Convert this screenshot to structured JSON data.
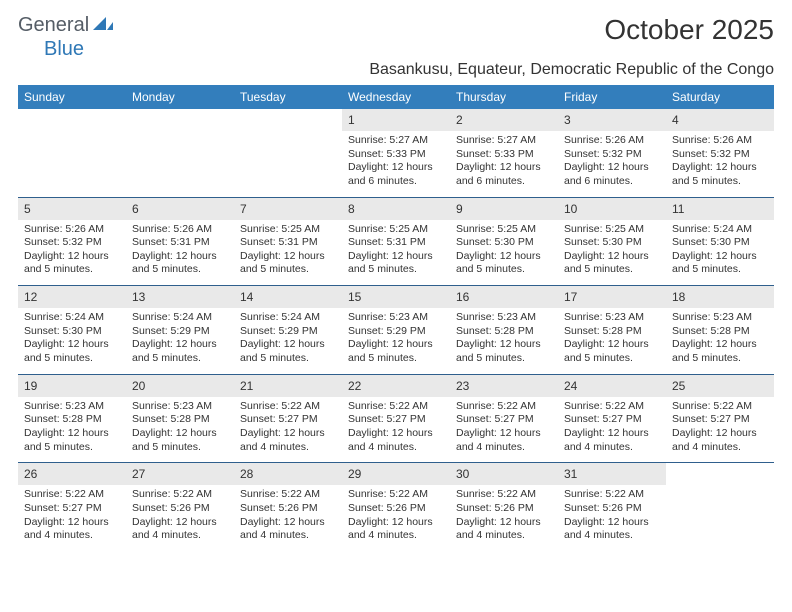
{
  "logo": {
    "text1": "General",
    "text2": "Blue"
  },
  "title": "October 2025",
  "location": "Basankusu, Equateur, Democratic Republic of the Congo",
  "colors": {
    "header_bg": "#337ebc",
    "header_text": "#ffffff",
    "daynum_bg": "#e9e9e9",
    "text": "#333333",
    "rule": "#2f5f8d",
    "logo_gray": "#555d66",
    "logo_blue": "#2f78b6"
  },
  "weekdays": [
    "Sunday",
    "Monday",
    "Tuesday",
    "Wednesday",
    "Thursday",
    "Friday",
    "Saturday"
  ],
  "weeks": [
    {
      "nums": [
        "",
        "",
        "",
        "1",
        "2",
        "3",
        "4"
      ],
      "cells": [
        null,
        null,
        null,
        {
          "sunrise": "Sunrise: 5:27 AM",
          "sunset": "Sunset: 5:33 PM",
          "day1": "Daylight: 12 hours",
          "day2": "and 6 minutes."
        },
        {
          "sunrise": "Sunrise: 5:27 AM",
          "sunset": "Sunset: 5:33 PM",
          "day1": "Daylight: 12 hours",
          "day2": "and 6 minutes."
        },
        {
          "sunrise": "Sunrise: 5:26 AM",
          "sunset": "Sunset: 5:32 PM",
          "day1": "Daylight: 12 hours",
          "day2": "and 6 minutes."
        },
        {
          "sunrise": "Sunrise: 5:26 AM",
          "sunset": "Sunset: 5:32 PM",
          "day1": "Daylight: 12 hours",
          "day2": "and 5 minutes."
        }
      ]
    },
    {
      "nums": [
        "5",
        "6",
        "7",
        "8",
        "9",
        "10",
        "11"
      ],
      "cells": [
        {
          "sunrise": "Sunrise: 5:26 AM",
          "sunset": "Sunset: 5:32 PM",
          "day1": "Daylight: 12 hours",
          "day2": "and 5 minutes."
        },
        {
          "sunrise": "Sunrise: 5:26 AM",
          "sunset": "Sunset: 5:31 PM",
          "day1": "Daylight: 12 hours",
          "day2": "and 5 minutes."
        },
        {
          "sunrise": "Sunrise: 5:25 AM",
          "sunset": "Sunset: 5:31 PM",
          "day1": "Daylight: 12 hours",
          "day2": "and 5 minutes."
        },
        {
          "sunrise": "Sunrise: 5:25 AM",
          "sunset": "Sunset: 5:31 PM",
          "day1": "Daylight: 12 hours",
          "day2": "and 5 minutes."
        },
        {
          "sunrise": "Sunrise: 5:25 AM",
          "sunset": "Sunset: 5:30 PM",
          "day1": "Daylight: 12 hours",
          "day2": "and 5 minutes."
        },
        {
          "sunrise": "Sunrise: 5:25 AM",
          "sunset": "Sunset: 5:30 PM",
          "day1": "Daylight: 12 hours",
          "day2": "and 5 minutes."
        },
        {
          "sunrise": "Sunrise: 5:24 AM",
          "sunset": "Sunset: 5:30 PM",
          "day1": "Daylight: 12 hours",
          "day2": "and 5 minutes."
        }
      ]
    },
    {
      "nums": [
        "12",
        "13",
        "14",
        "15",
        "16",
        "17",
        "18"
      ],
      "cells": [
        {
          "sunrise": "Sunrise: 5:24 AM",
          "sunset": "Sunset: 5:30 PM",
          "day1": "Daylight: 12 hours",
          "day2": "and 5 minutes."
        },
        {
          "sunrise": "Sunrise: 5:24 AM",
          "sunset": "Sunset: 5:29 PM",
          "day1": "Daylight: 12 hours",
          "day2": "and 5 minutes."
        },
        {
          "sunrise": "Sunrise: 5:24 AM",
          "sunset": "Sunset: 5:29 PM",
          "day1": "Daylight: 12 hours",
          "day2": "and 5 minutes."
        },
        {
          "sunrise": "Sunrise: 5:23 AM",
          "sunset": "Sunset: 5:29 PM",
          "day1": "Daylight: 12 hours",
          "day2": "and 5 minutes."
        },
        {
          "sunrise": "Sunrise: 5:23 AM",
          "sunset": "Sunset: 5:28 PM",
          "day1": "Daylight: 12 hours",
          "day2": "and 5 minutes."
        },
        {
          "sunrise": "Sunrise: 5:23 AM",
          "sunset": "Sunset: 5:28 PM",
          "day1": "Daylight: 12 hours",
          "day2": "and 5 minutes."
        },
        {
          "sunrise": "Sunrise: 5:23 AM",
          "sunset": "Sunset: 5:28 PM",
          "day1": "Daylight: 12 hours",
          "day2": "and 5 minutes."
        }
      ]
    },
    {
      "nums": [
        "19",
        "20",
        "21",
        "22",
        "23",
        "24",
        "25"
      ],
      "cells": [
        {
          "sunrise": "Sunrise: 5:23 AM",
          "sunset": "Sunset: 5:28 PM",
          "day1": "Daylight: 12 hours",
          "day2": "and 5 minutes."
        },
        {
          "sunrise": "Sunrise: 5:23 AM",
          "sunset": "Sunset: 5:28 PM",
          "day1": "Daylight: 12 hours",
          "day2": "and 5 minutes."
        },
        {
          "sunrise": "Sunrise: 5:22 AM",
          "sunset": "Sunset: 5:27 PM",
          "day1": "Daylight: 12 hours",
          "day2": "and 4 minutes."
        },
        {
          "sunrise": "Sunrise: 5:22 AM",
          "sunset": "Sunset: 5:27 PM",
          "day1": "Daylight: 12 hours",
          "day2": "and 4 minutes."
        },
        {
          "sunrise": "Sunrise: 5:22 AM",
          "sunset": "Sunset: 5:27 PM",
          "day1": "Daylight: 12 hours",
          "day2": "and 4 minutes."
        },
        {
          "sunrise": "Sunrise: 5:22 AM",
          "sunset": "Sunset: 5:27 PM",
          "day1": "Daylight: 12 hours",
          "day2": "and 4 minutes."
        },
        {
          "sunrise": "Sunrise: 5:22 AM",
          "sunset": "Sunset: 5:27 PM",
          "day1": "Daylight: 12 hours",
          "day2": "and 4 minutes."
        }
      ]
    },
    {
      "nums": [
        "26",
        "27",
        "28",
        "29",
        "30",
        "31",
        ""
      ],
      "cells": [
        {
          "sunrise": "Sunrise: 5:22 AM",
          "sunset": "Sunset: 5:27 PM",
          "day1": "Daylight: 12 hours",
          "day2": "and 4 minutes."
        },
        {
          "sunrise": "Sunrise: 5:22 AM",
          "sunset": "Sunset: 5:26 PM",
          "day1": "Daylight: 12 hours",
          "day2": "and 4 minutes."
        },
        {
          "sunrise": "Sunrise: 5:22 AM",
          "sunset": "Sunset: 5:26 PM",
          "day1": "Daylight: 12 hours",
          "day2": "and 4 minutes."
        },
        {
          "sunrise": "Sunrise: 5:22 AM",
          "sunset": "Sunset: 5:26 PM",
          "day1": "Daylight: 12 hours",
          "day2": "and 4 minutes."
        },
        {
          "sunrise": "Sunrise: 5:22 AM",
          "sunset": "Sunset: 5:26 PM",
          "day1": "Daylight: 12 hours",
          "day2": "and 4 minutes."
        },
        {
          "sunrise": "Sunrise: 5:22 AM",
          "sunset": "Sunset: 5:26 PM",
          "day1": "Daylight: 12 hours",
          "day2": "and 4 minutes."
        },
        null
      ]
    }
  ]
}
